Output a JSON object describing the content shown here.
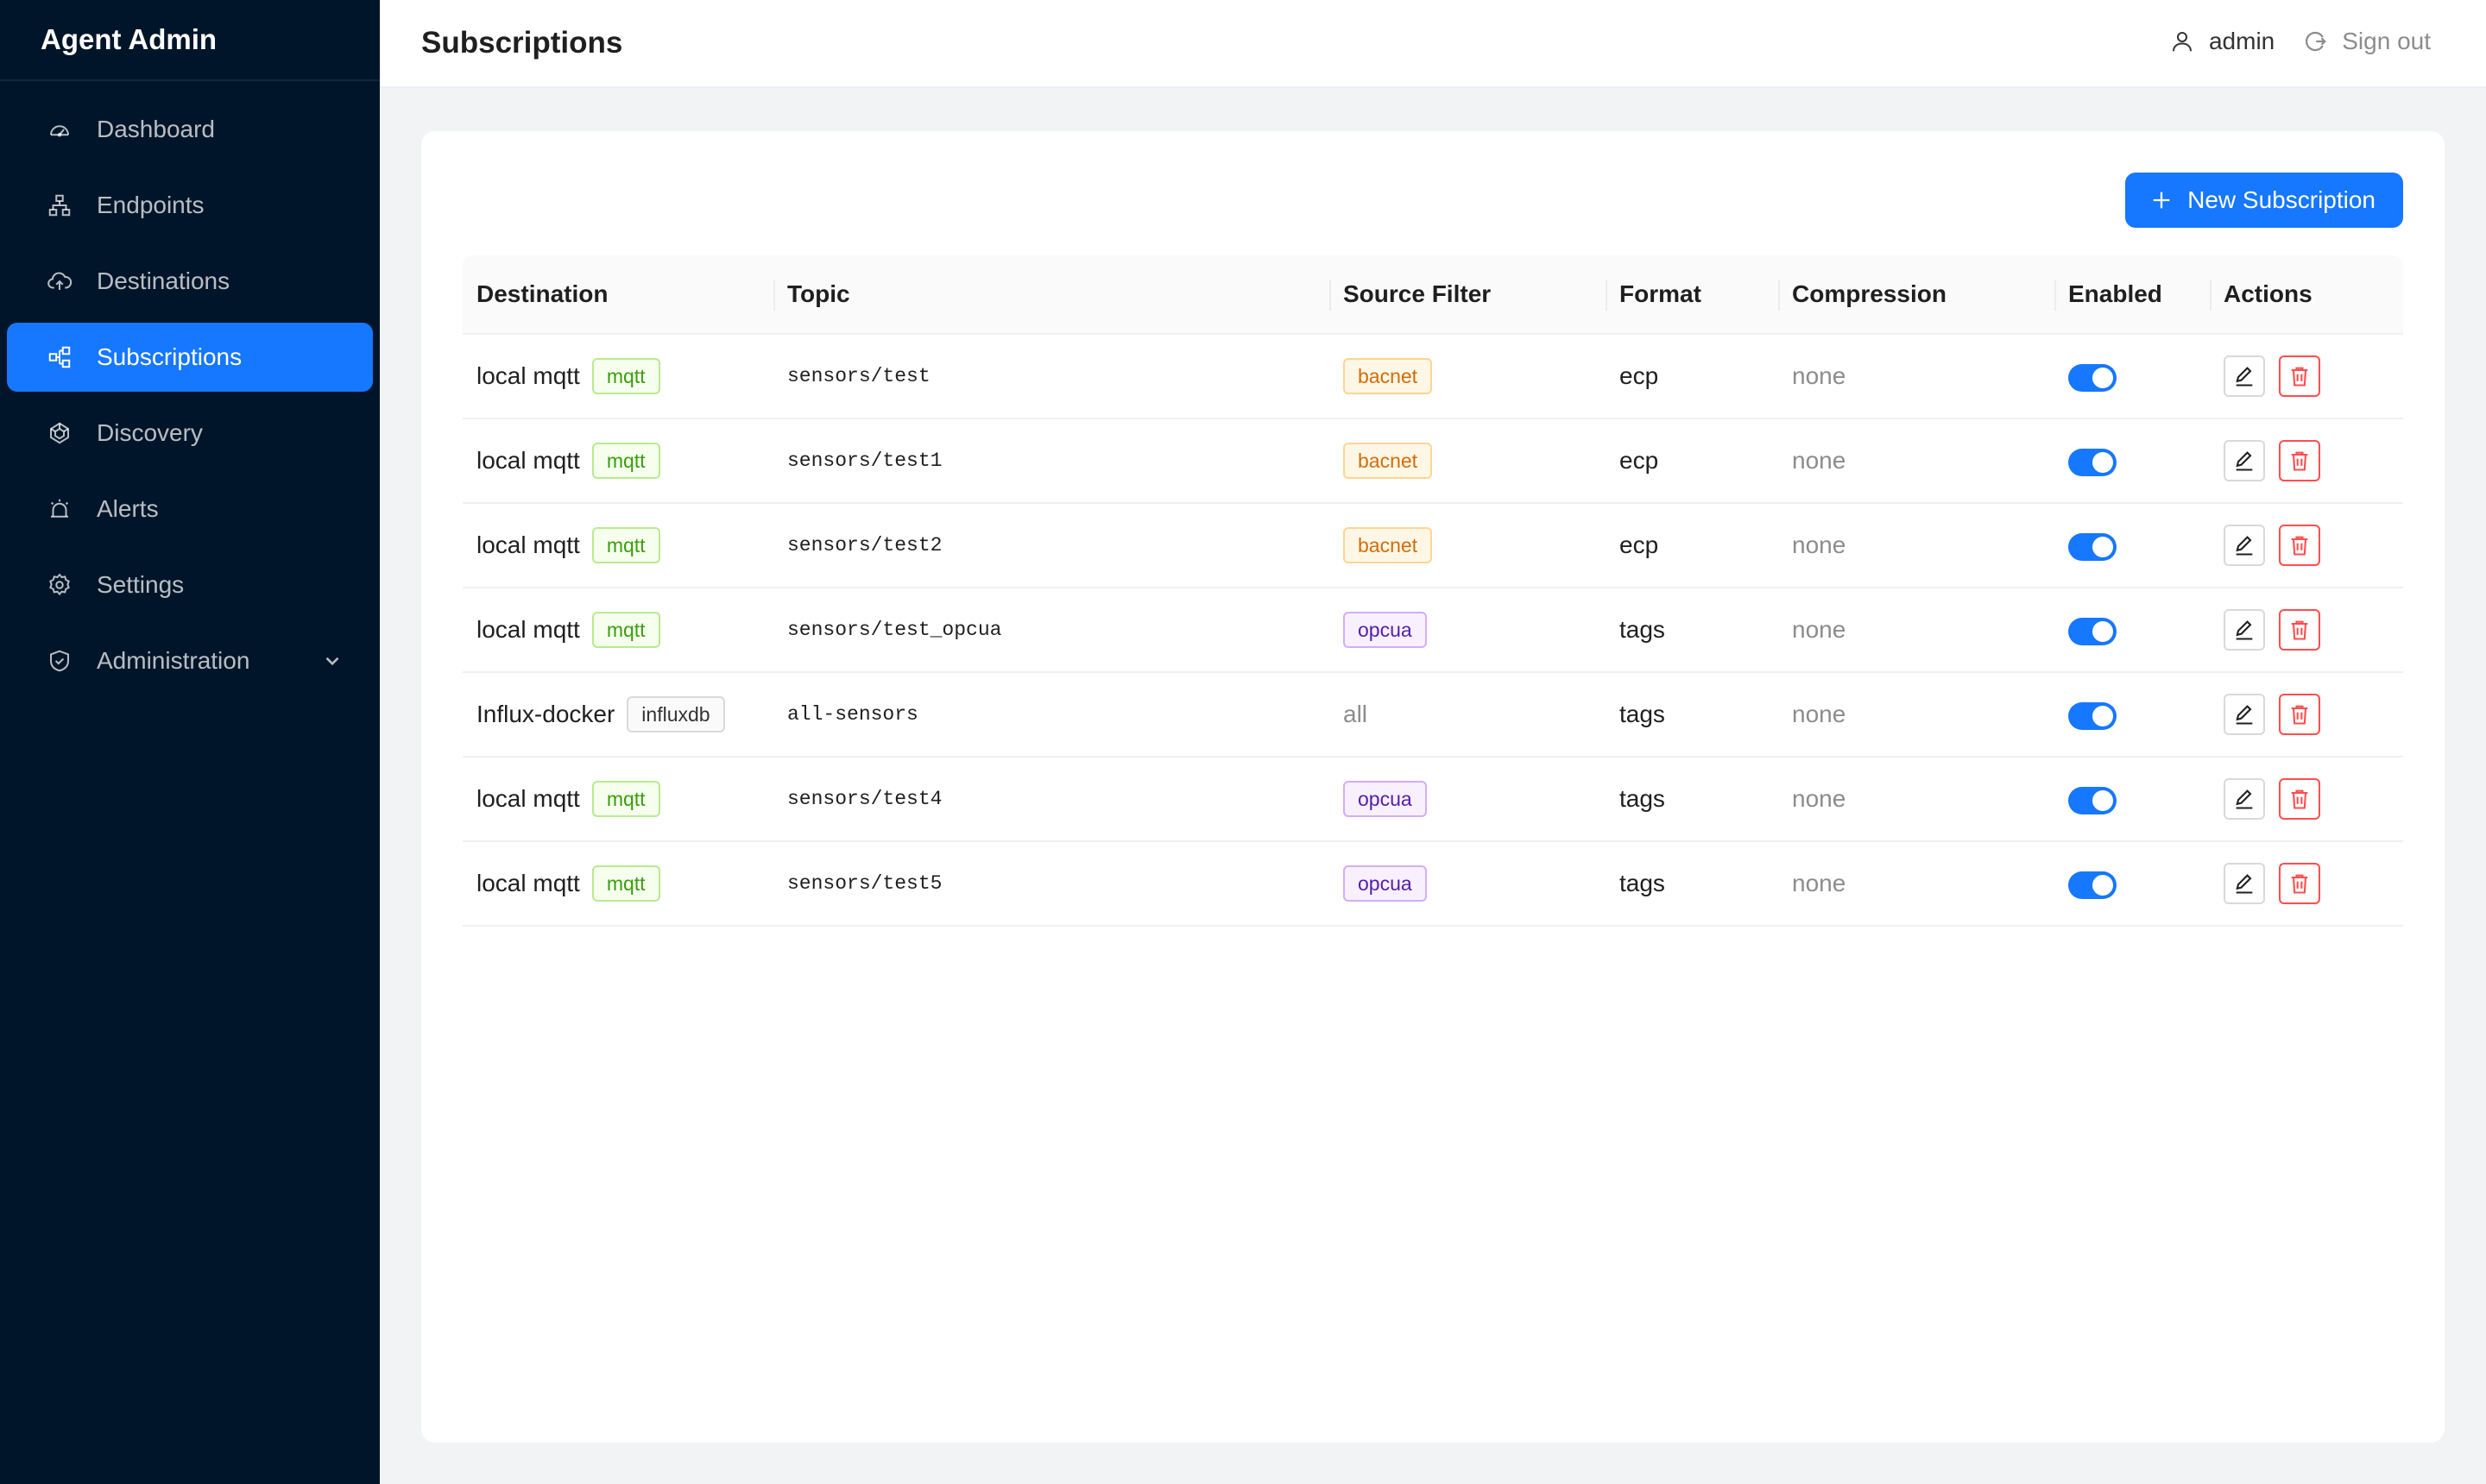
{
  "app": {
    "title": "Agent Admin"
  },
  "sidebar": {
    "items": [
      {
        "label": "Dashboard",
        "icon": "dashboard-icon"
      },
      {
        "label": "Endpoints",
        "icon": "cluster-icon"
      },
      {
        "label": "Destinations",
        "icon": "cloud-upload-icon"
      },
      {
        "label": "Subscriptions",
        "icon": "subscriptions-icon",
        "active": true
      },
      {
        "label": "Discovery",
        "icon": "radar-icon"
      },
      {
        "label": "Alerts",
        "icon": "alarm-icon"
      },
      {
        "label": "Settings",
        "icon": "gear-icon"
      },
      {
        "label": "Administration",
        "icon": "shield-icon",
        "expandable": true
      }
    ]
  },
  "header": {
    "title": "Subscriptions",
    "user": "admin",
    "signout": "Sign out"
  },
  "toolbar": {
    "new_label": "New Subscription"
  },
  "table": {
    "columns": [
      "Destination",
      "Topic",
      "Source Filter",
      "Format",
      "Compression",
      "Enabled",
      "Actions"
    ],
    "rows": [
      {
        "destination": "local mqtt",
        "dest_type": "mqtt",
        "topic": "sensors/test",
        "filter": "bacnet",
        "format": "ecp",
        "compression": "none",
        "enabled": true
      },
      {
        "destination": "local mqtt",
        "dest_type": "mqtt",
        "topic": "sensors/test1",
        "filter": "bacnet",
        "format": "ecp",
        "compression": "none",
        "enabled": true
      },
      {
        "destination": "local mqtt",
        "dest_type": "mqtt",
        "topic": "sensors/test2",
        "filter": "bacnet",
        "format": "ecp",
        "compression": "none",
        "enabled": true
      },
      {
        "destination": "local mqtt",
        "dest_type": "mqtt",
        "topic": "sensors/test_opcua",
        "filter": "opcua",
        "format": "tags",
        "compression": "none",
        "enabled": true
      },
      {
        "destination": "Influx-docker",
        "dest_type": "influxdb",
        "topic": "all-sensors",
        "filter": "all",
        "format": "tags",
        "compression": "none",
        "enabled": true
      },
      {
        "destination": "local mqtt",
        "dest_type": "mqtt",
        "topic": "sensors/test4",
        "filter": "opcua",
        "format": "tags",
        "compression": "none",
        "enabled": true
      },
      {
        "destination": "local mqtt",
        "dest_type": "mqtt",
        "topic": "sensors/test5",
        "filter": "opcua",
        "format": "tags",
        "compression": "none",
        "enabled": true
      }
    ]
  },
  "colors": {
    "sidebar_bg": "#001529",
    "accent": "#1677ff",
    "danger": "#ff4d4f",
    "tag_mqtt": "#389e0d",
    "tag_bacnet": "#d46b08",
    "tag_opcua": "#531dab"
  }
}
